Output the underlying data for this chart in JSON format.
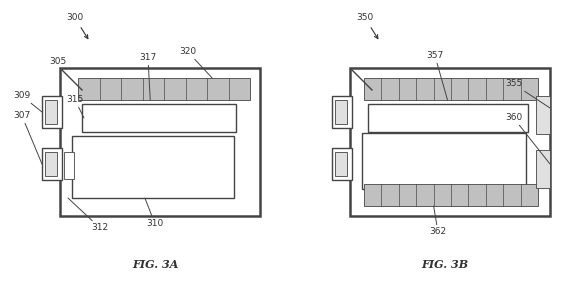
{
  "bg_color": "#ffffff",
  "lc": "#444444",
  "lw_thick": 1.8,
  "lw_med": 1.0,
  "lw_thin": 0.6,
  "fig3a_label": "FIG. 3A",
  "fig3b_label": "FIG. 3B",
  "label_fontsize": 8,
  "ann_fontsize": 6.5,
  "gray_strip": "#c0c0c0",
  "gray_shadow": "#999999",
  "gray_light": "#e0e0e0"
}
